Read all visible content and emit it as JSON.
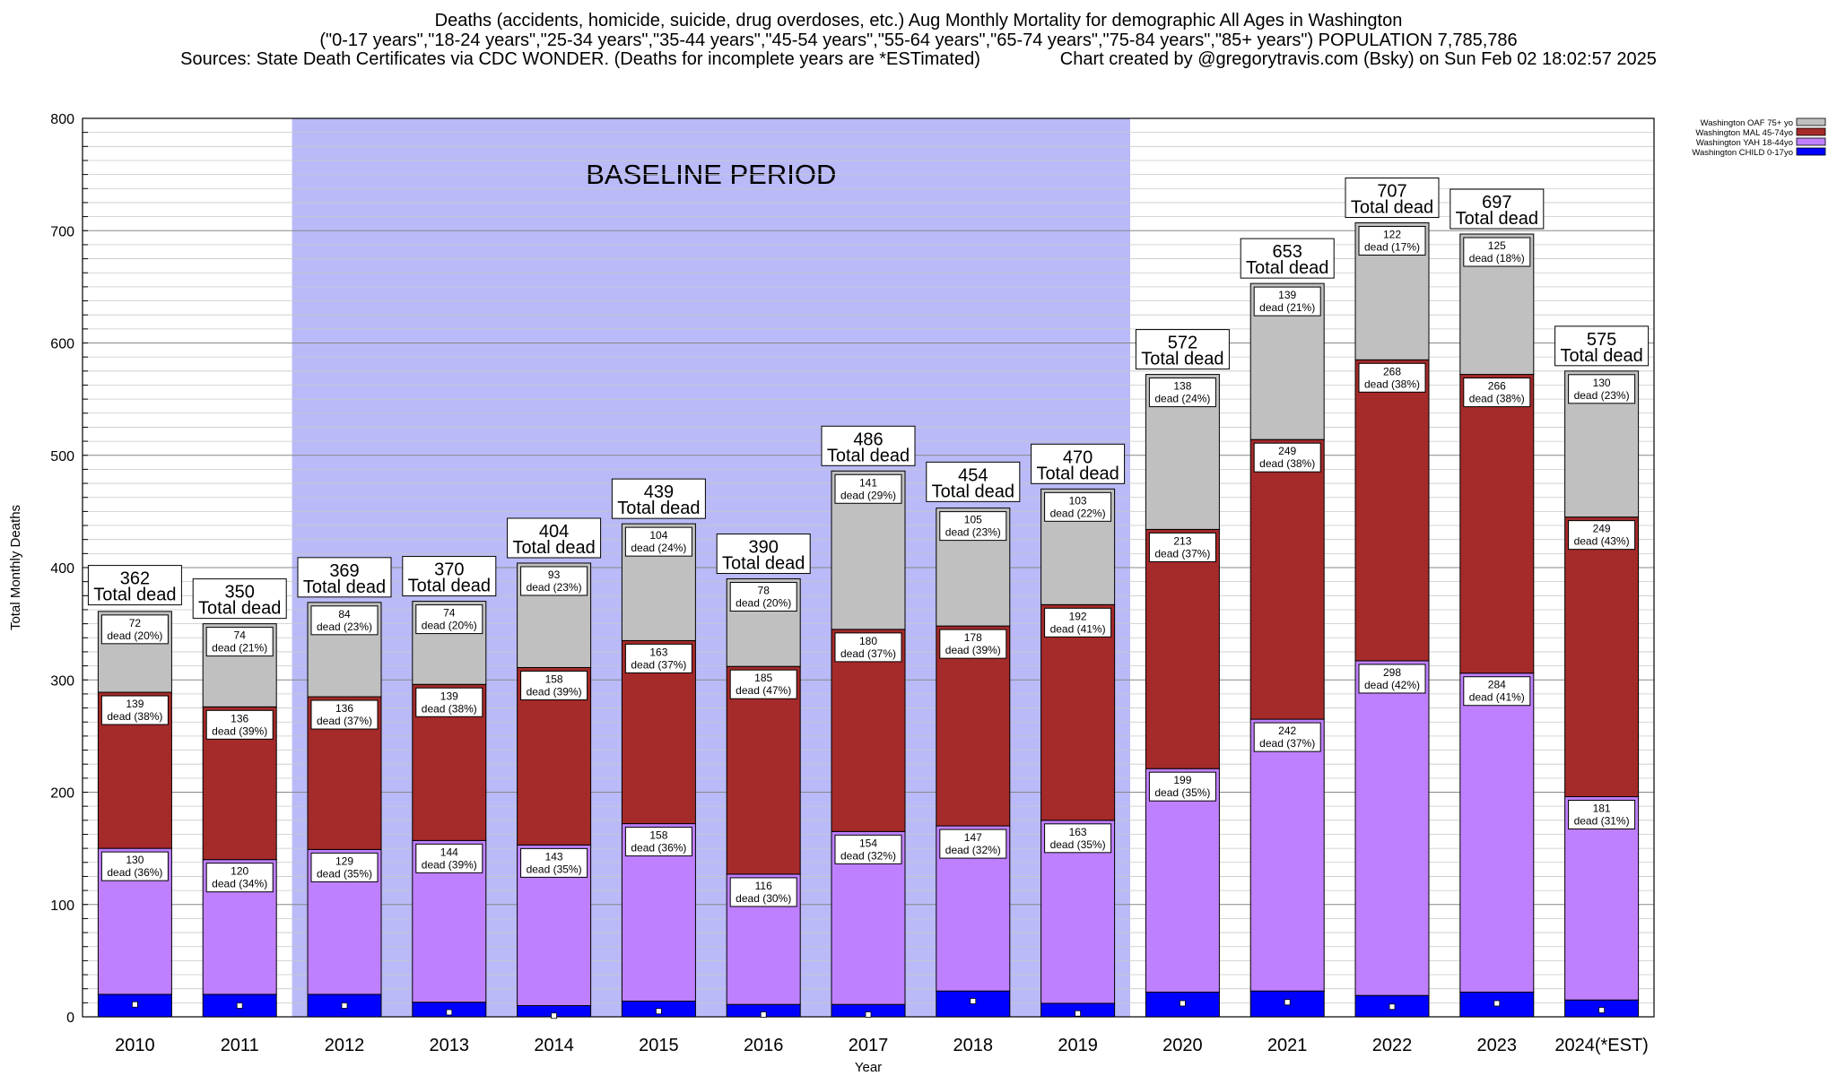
{
  "header": {
    "line1": "Deaths (accidents, homicide, suicide, drug overdoses, etc.) Aug Monthly Mortality for demographic All Ages in Washington",
    "line2": "(\"0-17 years\",\"18-24 years\",\"25-34 years\",\"35-44 years\",\"45-54 years\",\"55-64 years\",\"65-74 years\",\"75-84 years\",\"85+ years\") POPULATION 7,785,786",
    "line3": "Sources: State Death Certificates via CDC WONDER. (Deaths for incomplete years are *ESTimated)                Chart created by @gregorytravis.com (Bsky) on Sun Feb 02 18:02:57 2025"
  },
  "chart_data": {
    "type": "bar",
    "stacked": true,
    "xlabel": "Year",
    "ylabel": "Total Monthly Deaths",
    "ylim": [
      0,
      800
    ],
    "y_ticks": [
      0,
      100,
      200,
      300,
      400,
      500,
      600,
      700,
      800
    ],
    "grid": true,
    "legend_position": "top-right",
    "categories": [
      "2010",
      "2011",
      "2012",
      "2013",
      "2014",
      "2015",
      "2016",
      "2017",
      "2018",
      "2019",
      "2020",
      "2021",
      "2022",
      "2023",
      "2024(*EST)"
    ],
    "annotation": "BASELINE PERIOD",
    "baseline_range": [
      "2012",
      "2019"
    ],
    "total_label": "Total dead",
    "totals": [
      362,
      350,
      369,
      370,
      404,
      439,
      390,
      486,
      454,
      470,
      572,
      653,
      707,
      697,
      575
    ],
    "series": [
      {
        "name": "Washington CHILD 0-17yo",
        "color": "#0000ff",
        "values": [
          20,
          20,
          20,
          13,
          10,
          14,
          11,
          11,
          23,
          12,
          22,
          23,
          19,
          22,
          15
        ]
      },
      {
        "name": "Washington YAH 18-44yo",
        "color": "#bf80ff",
        "values": [
          130,
          120,
          129,
          144,
          143,
          158,
          116,
          154,
          147,
          163,
          199,
          242,
          298,
          284,
          181
        ],
        "labels": [
          "130|dead (36%)",
          "120|dead (34%)",
          "129|dead (35%)",
          "144|dead (39%)",
          "143|dead (35%)",
          "158|dead (36%)",
          "116|dead (30%)",
          "154|dead (32%)",
          "147|dead (32%)",
          "163|dead (35%)",
          "199|dead (35%)",
          "242|dead (37%)",
          "298|dead (42%)",
          "284|dead (41%)",
          "181|dead (31%)"
        ]
      },
      {
        "name": "Washington MAL 45-74yo",
        "color": "#a52a2a",
        "values": [
          139,
          136,
          136,
          139,
          158,
          163,
          185,
          180,
          178,
          192,
          213,
          249,
          268,
          266,
          249
        ],
        "labels": [
          "139|dead (38%)",
          "136|dead (39%)",
          "136|dead (37%)",
          "139|dead (38%)",
          "158|dead (39%)",
          "163|dead (37%)",
          "185|dead (47%)",
          "180|dead (37%)",
          "178|dead (39%)",
          "192|dead (41%)",
          "213|dead (37%)",
          "249|dead (38%)",
          "268|dead (38%)",
          "266|dead (38%)",
          "249|dead (43%)"
        ]
      },
      {
        "name": "Washington OAF 75+ yo",
        "color": "#c0c0c0",
        "values": [
          72,
          74,
          84,
          74,
          93,
          104,
          78,
          141,
          105,
          103,
          138,
          139,
          122,
          125,
          130
        ],
        "labels": [
          "72|dead (20%)",
          "74|dead (21%)",
          "84|dead (23%)",
          "74|dead (20%)",
          "93|dead (23%)",
          "104|dead (24%)",
          "78|dead (20%)",
          "141|dead (29%)",
          "105|dead (23%)",
          "103|dead (22%)",
          "138|dead (24%)",
          "139|dead (21%)",
          "122|dead (17%)",
          "125|dead (18%)",
          "130|dead (23%)"
        ]
      }
    ],
    "child_markers": [
      11,
      10,
      10,
      4,
      1,
      5,
      2,
      2,
      14,
      3,
      12,
      13,
      9,
      12,
      6
    ],
    "legend": [
      "Washington OAF 75+ yo",
      "Washington MAL 45-74yo",
      "Washington YAH 18-44yo",
      "Washington CHILD 0-17yo"
    ]
  }
}
